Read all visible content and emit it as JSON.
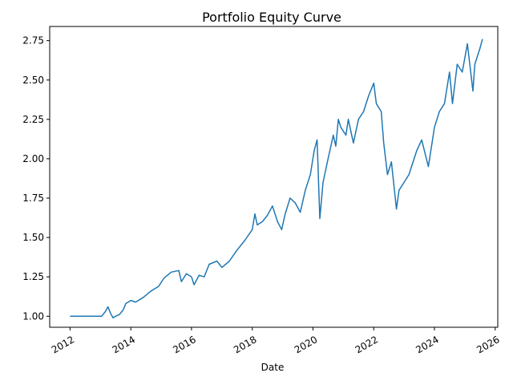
{
  "chart_data": {
    "type": "line",
    "title": "Portfolio Equity Curve",
    "xlabel": "Date",
    "ylabel": "",
    "grid": false,
    "legend": "none",
    "xlim": [
      "2011-05-01",
      "2026-02-01"
    ],
    "ylim": [
      0.93,
      2.84
    ],
    "x_ticks": [
      {
        "date": "2012-01-01",
        "label": "2012"
      },
      {
        "date": "2014-01-01",
        "label": "2014"
      },
      {
        "date": "2016-01-01",
        "label": "2016"
      },
      {
        "date": "2018-01-01",
        "label": "2018"
      },
      {
        "date": "2020-01-01",
        "label": "2020"
      },
      {
        "date": "2022-01-01",
        "label": "2022"
      },
      {
        "date": "2024-01-01",
        "label": "2024"
      },
      {
        "date": "2026-01-01",
        "label": "2026"
      }
    ],
    "y_ticks": [
      {
        "value": 1.0,
        "label": "1.00"
      },
      {
        "value": 1.25,
        "label": "1.25"
      },
      {
        "value": 1.5,
        "label": "1.50"
      },
      {
        "value": 1.75,
        "label": "1.75"
      },
      {
        "value": 2.0,
        "label": "2.00"
      },
      {
        "value": 2.25,
        "label": "2.25"
      },
      {
        "value": 2.5,
        "label": "2.50"
      },
      {
        "value": 2.75,
        "label": "2.75"
      }
    ],
    "series": [
      {
        "color": "#1f77b4",
        "points": [
          [
            "2012-01-01",
            1.0
          ],
          [
            "2012-06-01",
            1.0
          ],
          [
            "2012-12-01",
            1.0
          ],
          [
            "2013-01-15",
            1.0
          ],
          [
            "2013-03-01",
            1.03
          ],
          [
            "2013-04-01",
            1.06
          ],
          [
            "2013-05-01",
            1.02
          ],
          [
            "2013-06-01",
            0.99
          ],
          [
            "2013-07-01",
            1.0
          ],
          [
            "2013-08-15",
            1.01
          ],
          [
            "2013-10-01",
            1.04
          ],
          [
            "2013-11-01",
            1.08
          ],
          [
            "2014-01-01",
            1.1
          ],
          [
            "2014-03-01",
            1.09
          ],
          [
            "2014-06-01",
            1.12
          ],
          [
            "2014-09-01",
            1.16
          ],
          [
            "2014-12-01",
            1.19
          ],
          [
            "2015-02-01",
            1.24
          ],
          [
            "2015-05-01",
            1.28
          ],
          [
            "2015-08-01",
            1.29
          ],
          [
            "2015-09-01",
            1.22
          ],
          [
            "2015-11-01",
            1.27
          ],
          [
            "2016-01-01",
            1.25
          ],
          [
            "2016-02-01",
            1.2
          ],
          [
            "2016-04-01",
            1.26
          ],
          [
            "2016-06-01",
            1.25
          ],
          [
            "2016-08-01",
            1.33
          ],
          [
            "2016-11-01",
            1.35
          ],
          [
            "2017-01-01",
            1.31
          ],
          [
            "2017-04-01",
            1.35
          ],
          [
            "2017-07-01",
            1.42
          ],
          [
            "2017-10-01",
            1.48
          ],
          [
            "2018-01-01",
            1.55
          ],
          [
            "2018-02-01",
            1.65
          ],
          [
            "2018-03-01",
            1.58
          ],
          [
            "2018-05-01",
            1.6
          ],
          [
            "2018-07-01",
            1.64
          ],
          [
            "2018-09-01",
            1.7
          ],
          [
            "2018-11-01",
            1.6
          ],
          [
            "2018-12-20",
            1.55
          ],
          [
            "2019-02-01",
            1.65
          ],
          [
            "2019-04-01",
            1.75
          ],
          [
            "2019-06-01",
            1.72
          ],
          [
            "2019-08-01",
            1.66
          ],
          [
            "2019-10-01",
            1.8
          ],
          [
            "2019-12-01",
            1.9
          ],
          [
            "2020-01-15",
            2.05
          ],
          [
            "2020-02-20",
            2.12
          ],
          [
            "2020-03-23",
            1.62
          ],
          [
            "2020-05-01",
            1.85
          ],
          [
            "2020-07-01",
            2.0
          ],
          [
            "2020-09-01",
            2.15
          ],
          [
            "2020-10-01",
            2.08
          ],
          [
            "2020-11-01",
            2.25
          ],
          [
            "2020-12-01",
            2.2
          ],
          [
            "2021-02-01",
            2.15
          ],
          [
            "2021-03-01",
            2.25
          ],
          [
            "2021-05-01",
            2.1
          ],
          [
            "2021-07-01",
            2.25
          ],
          [
            "2021-09-01",
            2.3
          ],
          [
            "2021-11-01",
            2.4
          ],
          [
            "2022-01-01",
            2.48
          ],
          [
            "2022-02-01",
            2.35
          ],
          [
            "2022-04-01",
            2.3
          ],
          [
            "2022-05-01",
            2.1
          ],
          [
            "2022-06-15",
            1.9
          ],
          [
            "2022-08-01",
            1.98
          ],
          [
            "2022-10-01",
            1.68
          ],
          [
            "2022-11-01",
            1.8
          ],
          [
            "2023-01-01",
            1.85
          ],
          [
            "2023-03-01",
            1.9
          ],
          [
            "2023-06-01",
            2.05
          ],
          [
            "2023-08-01",
            2.12
          ],
          [
            "2023-10-20",
            1.95
          ],
          [
            "2024-01-01",
            2.2
          ],
          [
            "2024-03-01",
            2.3
          ],
          [
            "2024-05-01",
            2.35
          ],
          [
            "2024-07-01",
            2.55
          ],
          [
            "2024-08-05",
            2.35
          ],
          [
            "2024-10-01",
            2.6
          ],
          [
            "2024-12-01",
            2.55
          ],
          [
            "2025-02-01",
            2.73
          ],
          [
            "2025-04-08",
            2.43
          ],
          [
            "2025-05-01",
            2.6
          ],
          [
            "2025-07-01",
            2.7
          ],
          [
            "2025-08-01",
            2.76
          ]
        ]
      }
    ]
  }
}
